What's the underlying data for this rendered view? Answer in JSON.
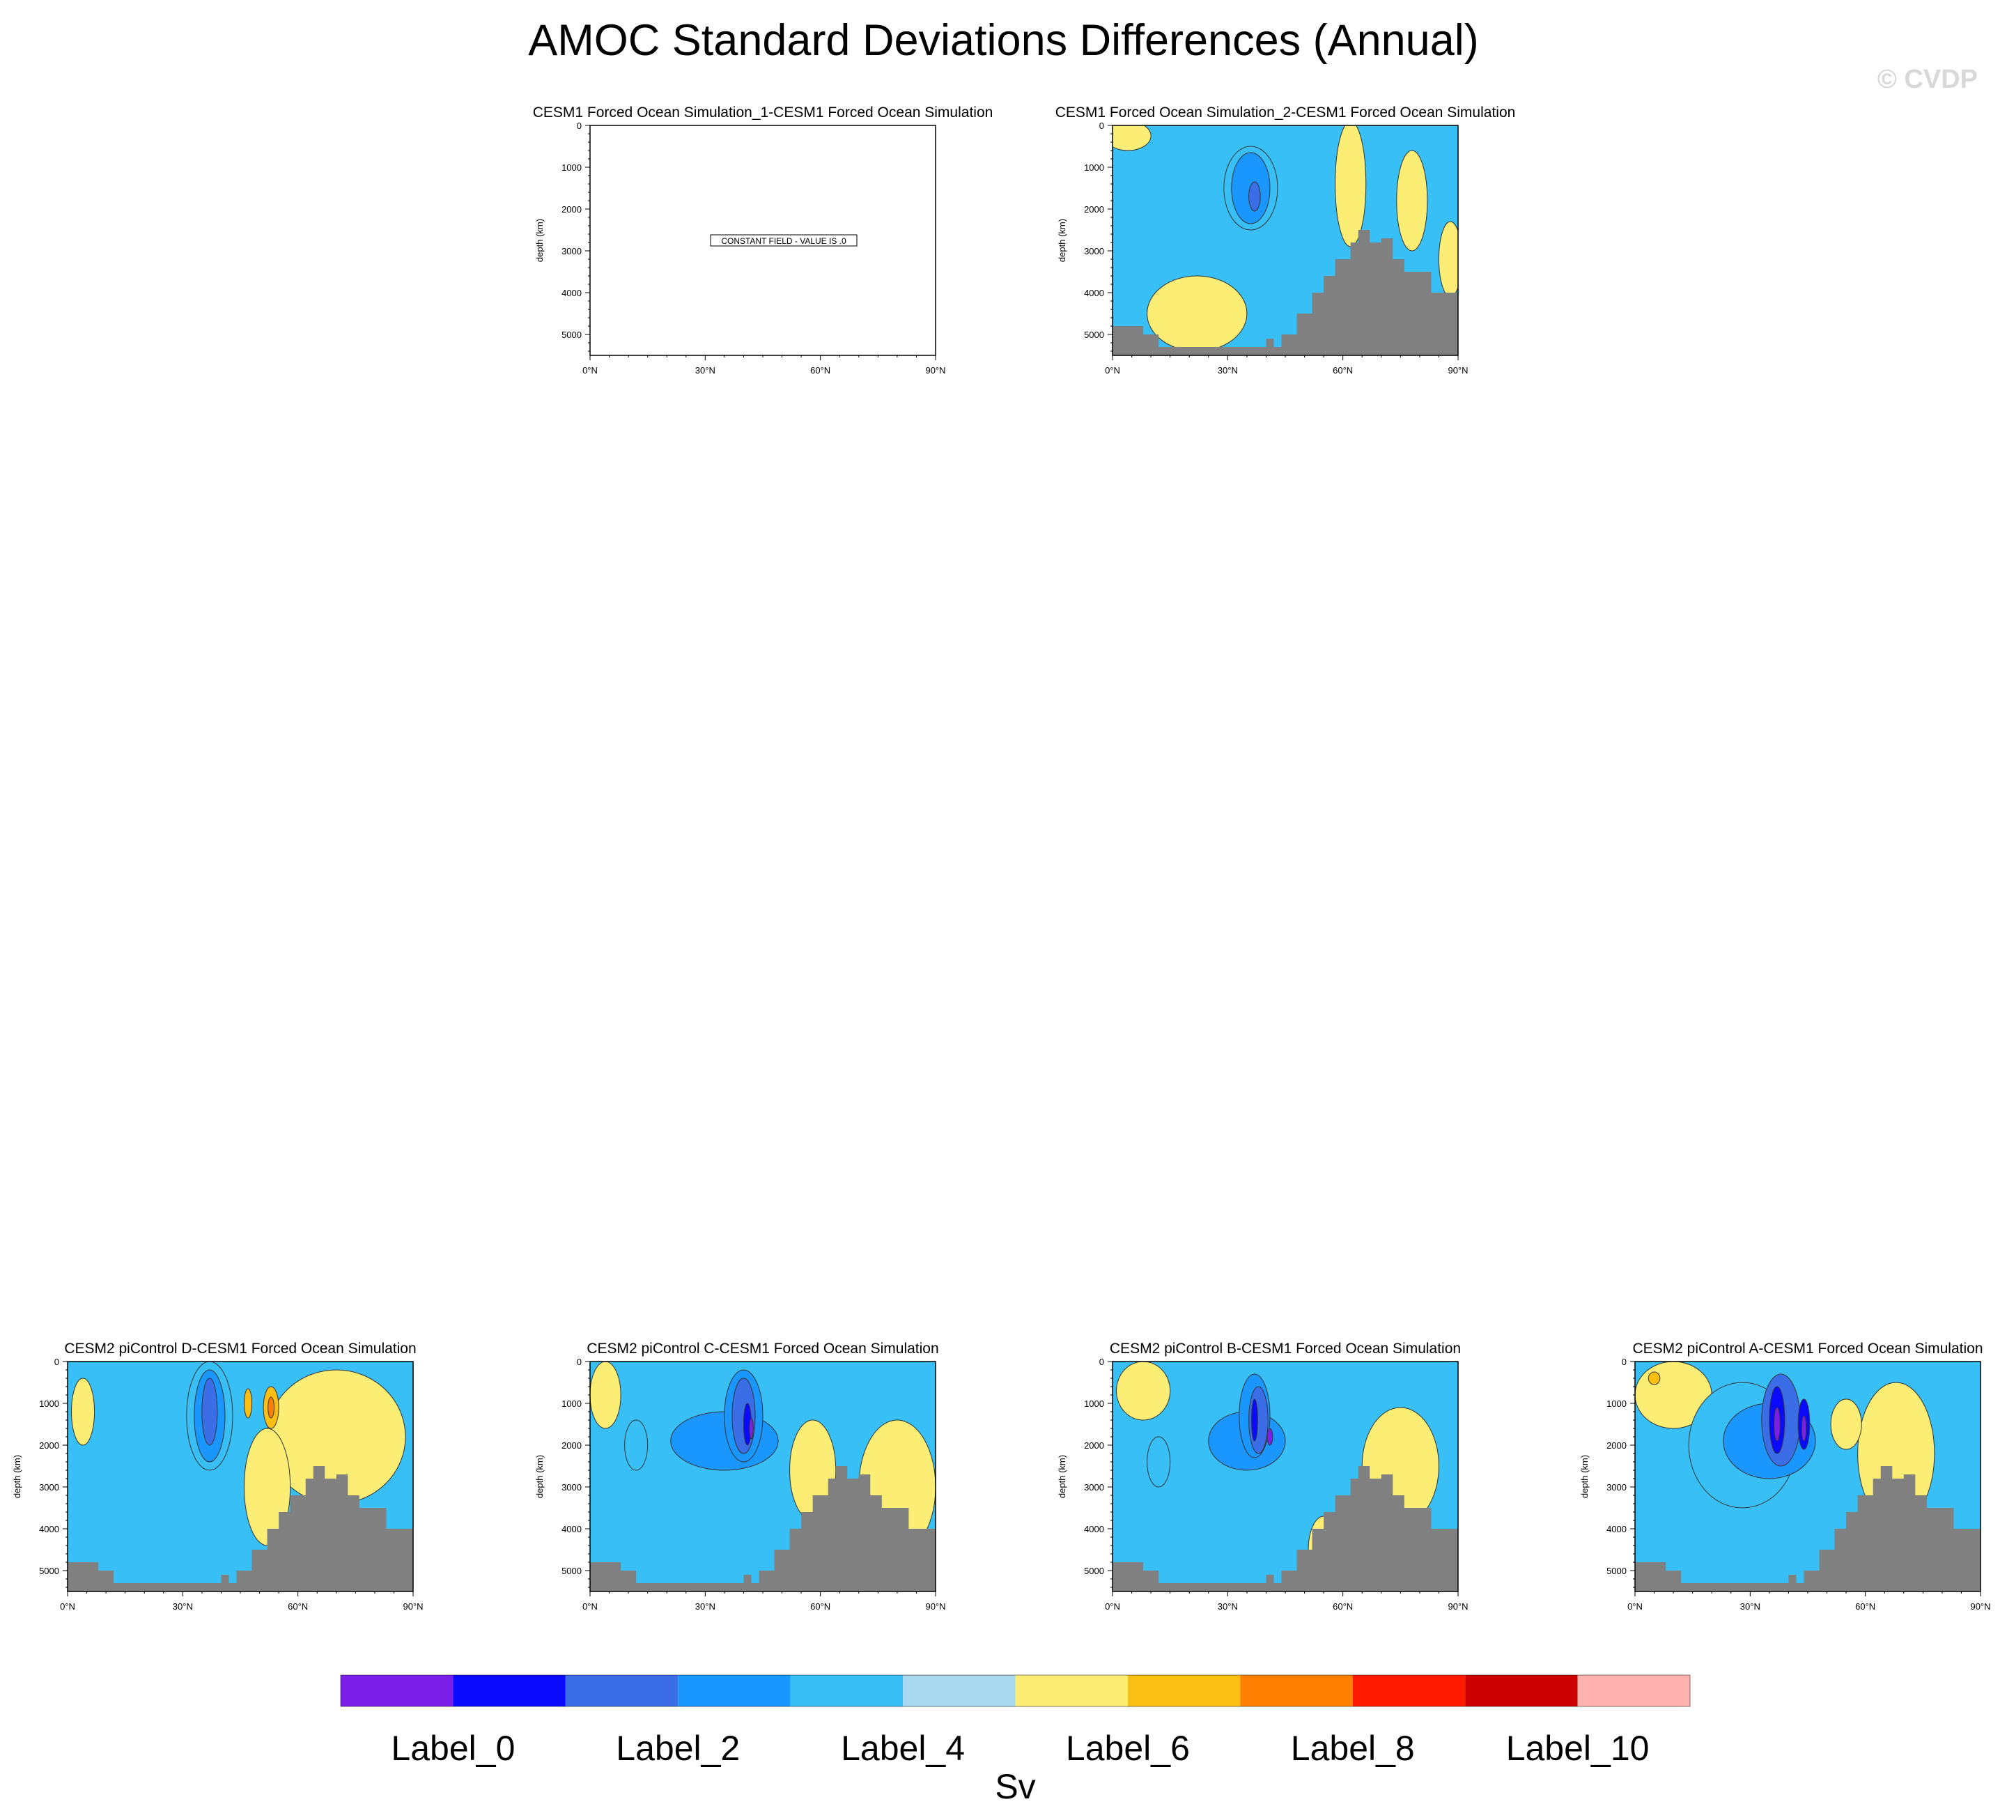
{
  "title": "AMOC Standard Deviations Differences (Annual)",
  "watermark": "© CVDP",
  "y_axis_label": "depth (km)",
  "y_ticks": [
    "0",
    "1000",
    "2000",
    "3000",
    "4000",
    "5000"
  ],
  "x_ticks": [
    "0°N",
    "30°N",
    "60°N",
    "90°N"
  ],
  "constant_field_note": "CONSTANT FIELD - VALUE IS .0",
  "colorbar": {
    "colors": [
      "#7c1fe8",
      "#0a0aff",
      "#3b6ee6",
      "#1a96ff",
      "#38bff5",
      "#a8d8f0",
      "#fcee74",
      "#fbbf14",
      "#ff7f00",
      "#ff1a00",
      "#cc0000",
      "#ffb2b0"
    ],
    "labels": [
      "Label_0",
      "Label_2",
      "Label_4",
      "Label_6",
      "Label_8",
      "Label_10"
    ],
    "units": "Sv"
  },
  "chart_data": [
    {
      "type": "heatmap",
      "title": "CESM1 Forced Ocean Simulation_1-CESM1 Forced Ocean Simulation",
      "ylabel": "depth (km)",
      "xlim": [
        0,
        90
      ],
      "ylim": [
        5500,
        0
      ],
      "constant_field": true,
      "value": 0
    },
    {
      "type": "heatmap",
      "title": "CESM1 Forced Ocean Simulation_2-CESM1 Forced Ocean Simulation",
      "ylabel": "depth (km)",
      "xlim": [
        0,
        90
      ],
      "ylim": [
        5500,
        0
      ],
      "dominant_level": "Label_4",
      "features": [
        {
          "level": "Label_3",
          "lat": 36,
          "depth": 1500
        },
        {
          "level": "Label_6",
          "lat": 22,
          "depth": 4300
        }
      ]
    },
    {
      "type": "heatmap",
      "title": "CESM2 piControl D-CESM1 Forced Ocean Simulation",
      "ylabel": "depth (km)",
      "xlim": [
        0,
        90
      ],
      "ylim": [
        5500,
        0
      ],
      "dominant_level": "Label_4",
      "features": [
        {
          "level": "Label_2",
          "lat": 37,
          "depth": 1200
        },
        {
          "level": "Label_7",
          "lat": 53,
          "depth": 1100
        }
      ]
    },
    {
      "type": "heatmap",
      "title": "CESM2 piControl C-CESM1 Forced Ocean Simulation",
      "ylabel": "depth (km)",
      "xlim": [
        0,
        90
      ],
      "ylim": [
        5500,
        0
      ],
      "dominant_level": "Label_4",
      "features": [
        {
          "level": "Label_1",
          "lat": 41,
          "depth": 1500
        }
      ]
    },
    {
      "type": "heatmap",
      "title": "CESM2 piControl B-CESM1 Forced Ocean Simulation",
      "ylabel": "depth (km)",
      "xlim": [
        0,
        90
      ],
      "ylim": [
        5500,
        0
      ],
      "dominant_level": "Label_4",
      "features": [
        {
          "level": "Label_1",
          "lat": 37,
          "depth": 1400
        }
      ]
    },
    {
      "type": "heatmap",
      "title": "CESM2 piControl A-CESM1 Forced Ocean Simulation",
      "ylabel": "depth (km)",
      "xlim": [
        0,
        90
      ],
      "ylim": [
        5500,
        0
      ],
      "dominant_level": "Label_4",
      "features": [
        {
          "level": "Label_0",
          "lat": 37,
          "depth": 1500
        },
        {
          "level": "Label_0",
          "lat": 44,
          "depth": 1500
        }
      ]
    }
  ]
}
